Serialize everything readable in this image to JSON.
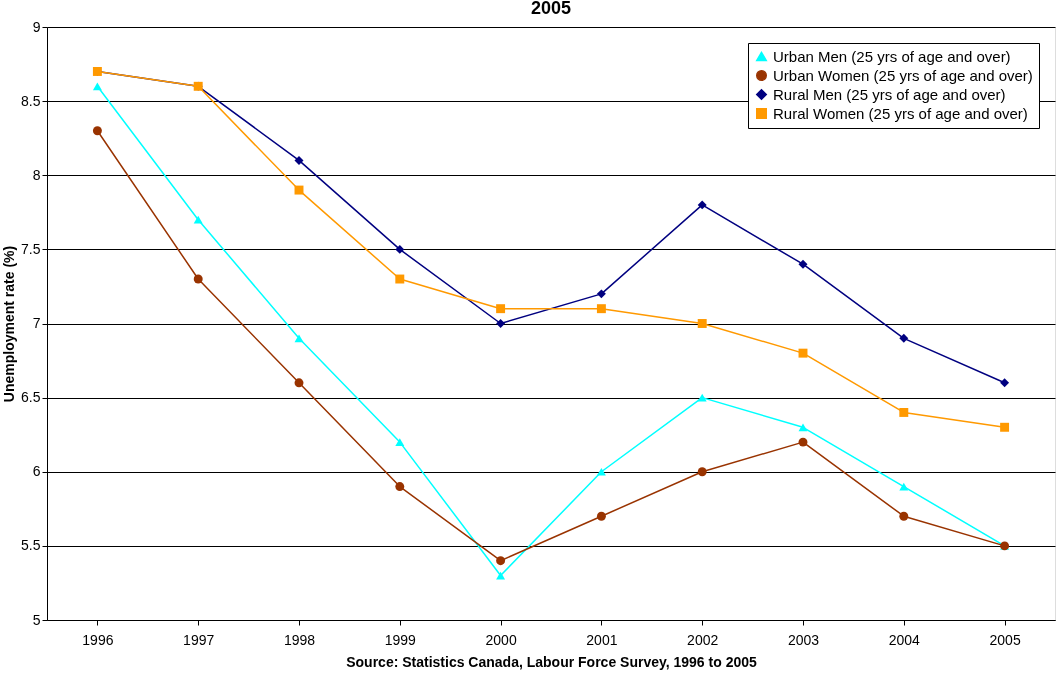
{
  "chart_data": {
    "type": "line",
    "title": "2005",
    "ylabel": "Unemployment rate (%)",
    "annotations": [
      "Source: Statistics Canada, Labour Force Survey, 1996 to 2005"
    ],
    "categories": [
      "1996",
      "1997",
      "1998",
      "1999",
      "2000",
      "2001",
      "2002",
      "2003",
      "2004",
      "2005"
    ],
    "series": [
      {
        "name": "Urban Men (25 yrs of age and over)",
        "color": "#00ffff",
        "marker": "triangle",
        "values": [
          8.6,
          7.7,
          6.9,
          6.2,
          5.3,
          6.0,
          6.5,
          6.3,
          5.9,
          5.5
        ]
      },
      {
        "name": "Urban Women (25 yrs of age and over)",
        "color": "#993300",
        "marker": "circle",
        "values": [
          8.3,
          7.3,
          6.6,
          5.9,
          5.4,
          5.7,
          6.0,
          6.2,
          5.7,
          5.5
        ]
      },
      {
        "name": "Rural Men (25 yrs of age and over)",
        "color": "#000080",
        "marker": "diamond",
        "values": [
          8.7,
          8.6,
          8.1,
          7.5,
          7.0,
          7.2,
          7.8,
          7.4,
          6.9,
          6.6
        ]
      },
      {
        "name": "Rural Women (25 yrs of age and over)",
        "color": "#ff9900",
        "marker": "square",
        "values": [
          8.7,
          8.6,
          7.9,
          7.3,
          7.1,
          7.1,
          7.0,
          6.8,
          6.4,
          6.3
        ]
      }
    ],
    "ylim": [
      5,
      9
    ],
    "yticks": [
      5,
      5.5,
      6,
      6.5,
      7,
      7.5,
      8,
      8.5,
      9
    ],
    "grid": "y",
    "legend": "top right"
  }
}
